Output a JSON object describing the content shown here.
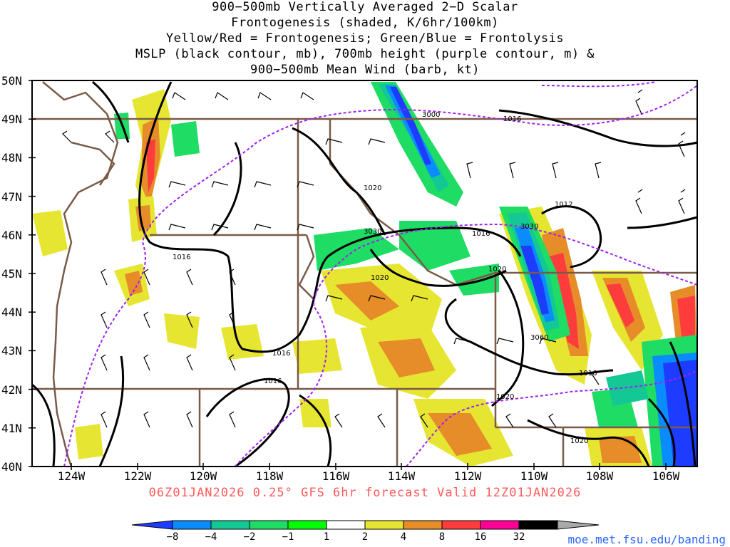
{
  "title_lines": [
    "900−500mb Vertically Averaged 2−D Scalar",
    "Frontogenesis (shaded, K/6hr/100km)",
    "Yellow/Red = Frontogenesis;  Green/Blue = Frontolysis",
    "MSLP (black contour, mb), 700mb height (purple contour, m) &",
    "900−500mb Mean Wind (barb, kt)"
  ],
  "lat_labels": [
    "50N",
    "49N",
    "48N",
    "47N",
    "46N",
    "45N",
    "44N",
    "43N",
    "42N",
    "41N",
    "40N"
  ],
  "lon_labels": [
    "124W",
    "122W",
    "120W",
    "118W",
    "116W",
    "114W",
    "112W",
    "110W",
    "108W",
    "106W"
  ],
  "mslp_labels": [
    "1016",
    "1020",
    "1016",
    "1020",
    "1016",
    "1012",
    "1020",
    "1016",
    "1016",
    "1016",
    "1020",
    "1020",
    "1020"
  ],
  "height_labels": [
    "3000",
    "3030",
    "3030",
    "3060"
  ],
  "forecast_text": "06Z01JAN2026 0.25° GFS 6hr forecast Valid 12Z01JAN2026",
  "colorbar": {
    "labels": [
      "−8",
      "−4",
      "−2",
      "−1",
      "1",
      "2",
      "4",
      "8",
      "16",
      "32"
    ],
    "colors": [
      "#1e3cff",
      "#0a8cff",
      "#14c896",
      "#1edc64",
      "#00ff00",
      "#ffffff",
      "#e6e632",
      "#e68c28",
      "#ff3c3c",
      "#ff0096",
      "#000000",
      "#aaaaaa"
    ]
  },
  "credit": "moe.met.fsu.edu/banding"
}
